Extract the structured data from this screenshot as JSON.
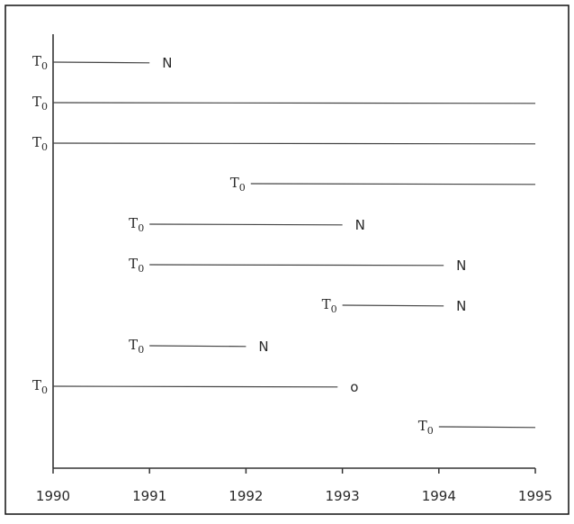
{
  "chart_data": {
    "type": "timeline",
    "title": "",
    "xlabel": "",
    "ylabel": "",
    "xlim": [
      1990,
      1995
    ],
    "x_ticks": [
      "1990",
      "1991",
      "1992",
      "1993",
      "1994",
      "1995"
    ],
    "start_label": "T",
    "start_label_sub": "0",
    "subjects": [
      {
        "start": 1990.0,
        "end": 1991.0,
        "end_label": "N"
      },
      {
        "start": 1990.0,
        "end": 1995.0,
        "end_label": ""
      },
      {
        "start": 1990.0,
        "end": 1995.0,
        "end_label": ""
      },
      {
        "start": 1992.05,
        "end": 1995.0,
        "end_label": ""
      },
      {
        "start": 1991.0,
        "end": 1993.0,
        "end_label": "N"
      },
      {
        "start": 1991.0,
        "end": 1994.05,
        "end_label": "N"
      },
      {
        "start": 1993.0,
        "end": 1994.05,
        "end_label": "N"
      },
      {
        "start": 1991.0,
        "end": 1992.0,
        "end_label": "N"
      },
      {
        "start": 1990.0,
        "end": 1992.95,
        "end_label": "o"
      },
      {
        "start": 1994.0,
        "end": 1995.0,
        "end_label": ""
      }
    ]
  }
}
